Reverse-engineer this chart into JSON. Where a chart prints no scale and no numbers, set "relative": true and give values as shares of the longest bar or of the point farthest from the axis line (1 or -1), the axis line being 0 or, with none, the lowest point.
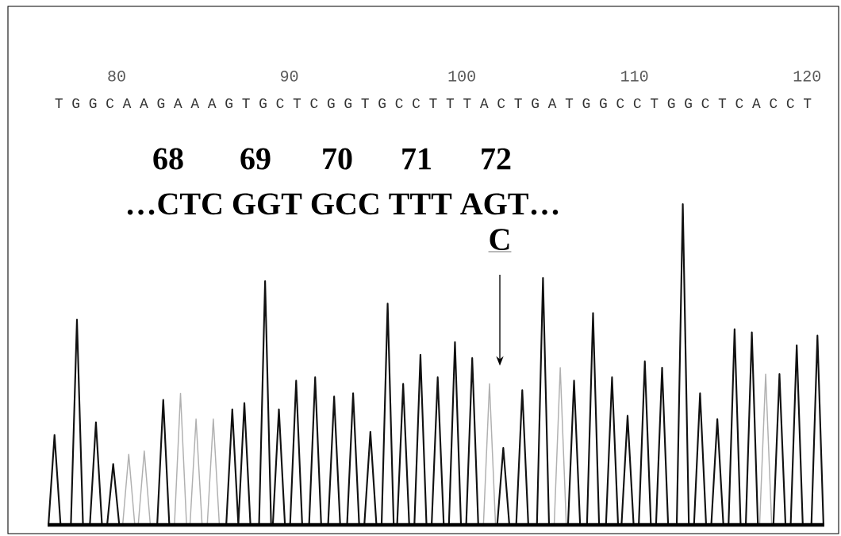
{
  "chart_data": {
    "type": "line",
    "relative": true,
    "xlim": [
      76,
      121
    ],
    "xticks": [
      80,
      90,
      100,
      110,
      120
    ],
    "annotations": [
      "T G G C A A G A A A G T G C T C G G T G C C T T T A C T G A T G G C C T G G C T C A C C T",
      "68",
      "69",
      "70",
      "71",
      "72",
      "…CTC GGT GCC TTT AGT…",
      "C"
    ],
    "series": [
      {
        "color": "#b0b0b0",
        "x": [
          80.35,
          80.7,
          81.05,
          81.25,
          81.6,
          81.95,
          83.35,
          83.7,
          84.05,
          84.25,
          84.6,
          84.95,
          85.25,
          85.6,
          85.95,
          101.25,
          101.6,
          101.95,
          105.35,
          105.7,
          106.05,
          117.25,
          117.6,
          117.95
        ],
        "values": [
          0,
          0.22,
          0,
          0,
          0.23,
          0,
          0,
          0.41,
          0,
          0,
          0.33,
          0,
          0,
          0.33,
          0,
          0,
          0.44,
          0,
          0,
          0.49,
          0,
          0,
          0.47,
          0
        ]
      },
      {
        "color": "#111111",
        "x": [
          76.05,
          76.4,
          76.75,
          77.35,
          77.7,
          78.05,
          78.45,
          78.8,
          79.15,
          79.45,
          79.8,
          80.15,
          82.35,
          82.7,
          83.05,
          86.35,
          86.7,
          87.05,
          87.05,
          87.4,
          87.75,
          88.25,
          88.6,
          88.95,
          89.05,
          89.4,
          89.75,
          90.05,
          90.4,
          90.75,
          91.15,
          91.5,
          91.85,
          92.25,
          92.6,
          92.95,
          93.35,
          93.7,
          94.05,
          94.35,
          94.7,
          95.05,
          95.35,
          95.7,
          96.05,
          96.25,
          96.6,
          96.95,
          97.25,
          97.6,
          97.95,
          98.25,
          98.6,
          98.95,
          99.25,
          99.6,
          99.95,
          100.25,
          100.6,
          100.95,
          102.05,
          102.4,
          102.75,
          103.15,
          103.5,
          103.85,
          104.35,
          104.7,
          105.05,
          106.15,
          106.5,
          106.85,
          107.25,
          107.6,
          107.95,
          108.35,
          108.7,
          109.05,
          109.25,
          109.6,
          109.95,
          110.25,
          110.6,
          110.95,
          111.25,
          111.6,
          111.95,
          112.45,
          112.8,
          113.15,
          113.45,
          113.8,
          114.15,
          114.45,
          114.8,
          115.15,
          115.45,
          115.8,
          116.15,
          116.45,
          116.8,
          117.15,
          118.05,
          118.4,
          118.75,
          119.05,
          119.4,
          119.75,
          120.25,
          120.6,
          120.95
        ],
        "values": [
          0,
          0.28,
          0,
          0,
          0.64,
          0,
          0,
          0.32,
          0,
          0,
          0.19,
          0,
          0,
          0.39,
          0,
          0,
          0.36,
          0,
          0,
          0.38,
          0,
          0,
          0.76,
          0,
          0,
          0.36,
          0,
          0,
          0.45,
          0,
          0,
          0.46,
          0,
          0,
          0.4,
          0,
          0,
          0.41,
          0,
          0,
          0.29,
          0,
          0,
          0.69,
          0,
          0,
          0.44,
          0,
          0,
          0.53,
          0,
          0,
          0.46,
          0,
          0,
          0.57,
          0,
          0,
          0.52,
          0,
          0,
          0.24,
          0,
          0,
          0.42,
          0,
          0,
          0.77,
          0,
          0,
          0.45,
          0,
          0,
          0.66,
          0,
          0,
          0.46,
          0,
          0,
          0.34,
          0,
          0,
          0.51,
          0,
          0,
          0.49,
          0,
          0,
          1,
          0,
          0,
          0.41,
          0,
          0,
          0.33,
          0,
          0,
          0.61,
          0,
          0,
          0.6,
          0,
          0,
          0.47,
          0,
          0,
          0.56,
          0,
          0,
          0.59,
          0
        ]
      }
    ]
  }
}
